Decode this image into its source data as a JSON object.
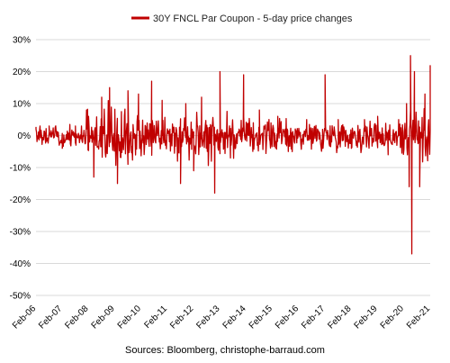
{
  "chart_data": {
    "type": "line",
    "title": "",
    "xlabel": "",
    "ylabel": "",
    "legend_position": "top",
    "grid": true,
    "y_axis": {
      "min": -50,
      "max": 30,
      "ticks": [
        30,
        20,
        10,
        0,
        -10,
        -20,
        -30,
        -40,
        -50
      ],
      "tick_labels": [
        "30%",
        "20%",
        "10%",
        "0%",
        "-10%",
        "-20%",
        "-30%",
        "-40%",
        "-50%"
      ]
    },
    "x_axis": {
      "start": "2006-02",
      "end": "2021-02",
      "tick_labels": [
        "Feb-06",
        "Feb-07",
        "Feb-08",
        "Feb-09",
        "Feb-10",
        "Feb-11",
        "Feb-12",
        "Feb-13",
        "Feb-14",
        "Feb-15",
        "Feb-16",
        "Feb-17",
        "Feb-18",
        "Feb-19",
        "Feb-20",
        "Feb-21"
      ]
    },
    "series": [
      {
        "name": "30Y FNCL Par Coupon - 5-day price changes",
        "color": "#c00000",
        "anchors": [
          {
            "x": 2006.0,
            "y": 2
          },
          {
            "x": 2006.5,
            "y": 3
          },
          {
            "x": 2007.0,
            "y": -4
          },
          {
            "x": 2007.5,
            "y": 3
          },
          {
            "x": 2008.0,
            "y": 6
          },
          {
            "x": 2008.2,
            "y": -13
          },
          {
            "x": 2008.5,
            "y": 12
          },
          {
            "x": 2008.8,
            "y": 15
          },
          {
            "x": 2009.1,
            "y": -15
          },
          {
            "x": 2009.5,
            "y": 14
          },
          {
            "x": 2009.9,
            "y": 13
          },
          {
            "x": 2010.4,
            "y": 17
          },
          {
            "x": 2010.8,
            "y": 11
          },
          {
            "x": 2011.5,
            "y": -15
          },
          {
            "x": 2011.7,
            "y": 10
          },
          {
            "x": 2012.0,
            "y": -11
          },
          {
            "x": 2012.3,
            "y": 12
          },
          {
            "x": 2012.8,
            "y": -18
          },
          {
            "x": 2013.0,
            "y": 20
          },
          {
            "x": 2013.4,
            "y": -7
          },
          {
            "x": 2013.9,
            "y": 19
          },
          {
            "x": 2014.5,
            "y": 8
          },
          {
            "x": 2015.2,
            "y": 6
          },
          {
            "x": 2015.6,
            "y": -5
          },
          {
            "x": 2016.3,
            "y": 5
          },
          {
            "x": 2016.9,
            "y": -4
          },
          {
            "x": 2017.0,
            "y": 19
          },
          {
            "x": 2017.5,
            "y": 5
          },
          {
            "x": 2018.0,
            "y": -4
          },
          {
            "x": 2018.5,
            "y": 5
          },
          {
            "x": 2019.0,
            "y": 6
          },
          {
            "x": 2019.4,
            "y": -6
          },
          {
            "x": 2019.8,
            "y": 5
          },
          {
            "x": 2020.1,
            "y": 10
          },
          {
            "x": 2020.2,
            "y": -16
          },
          {
            "x": 2020.25,
            "y": 25
          },
          {
            "x": 2020.3,
            "y": -37
          },
          {
            "x": 2020.4,
            "y": 20
          },
          {
            "x": 2020.6,
            "y": -16
          },
          {
            "x": 2020.8,
            "y": 13
          },
          {
            "x": 2021.0,
            "y": 22
          }
        ]
      }
    ],
    "source": "Sources: Bloomberg, christophe-barraud.com"
  }
}
